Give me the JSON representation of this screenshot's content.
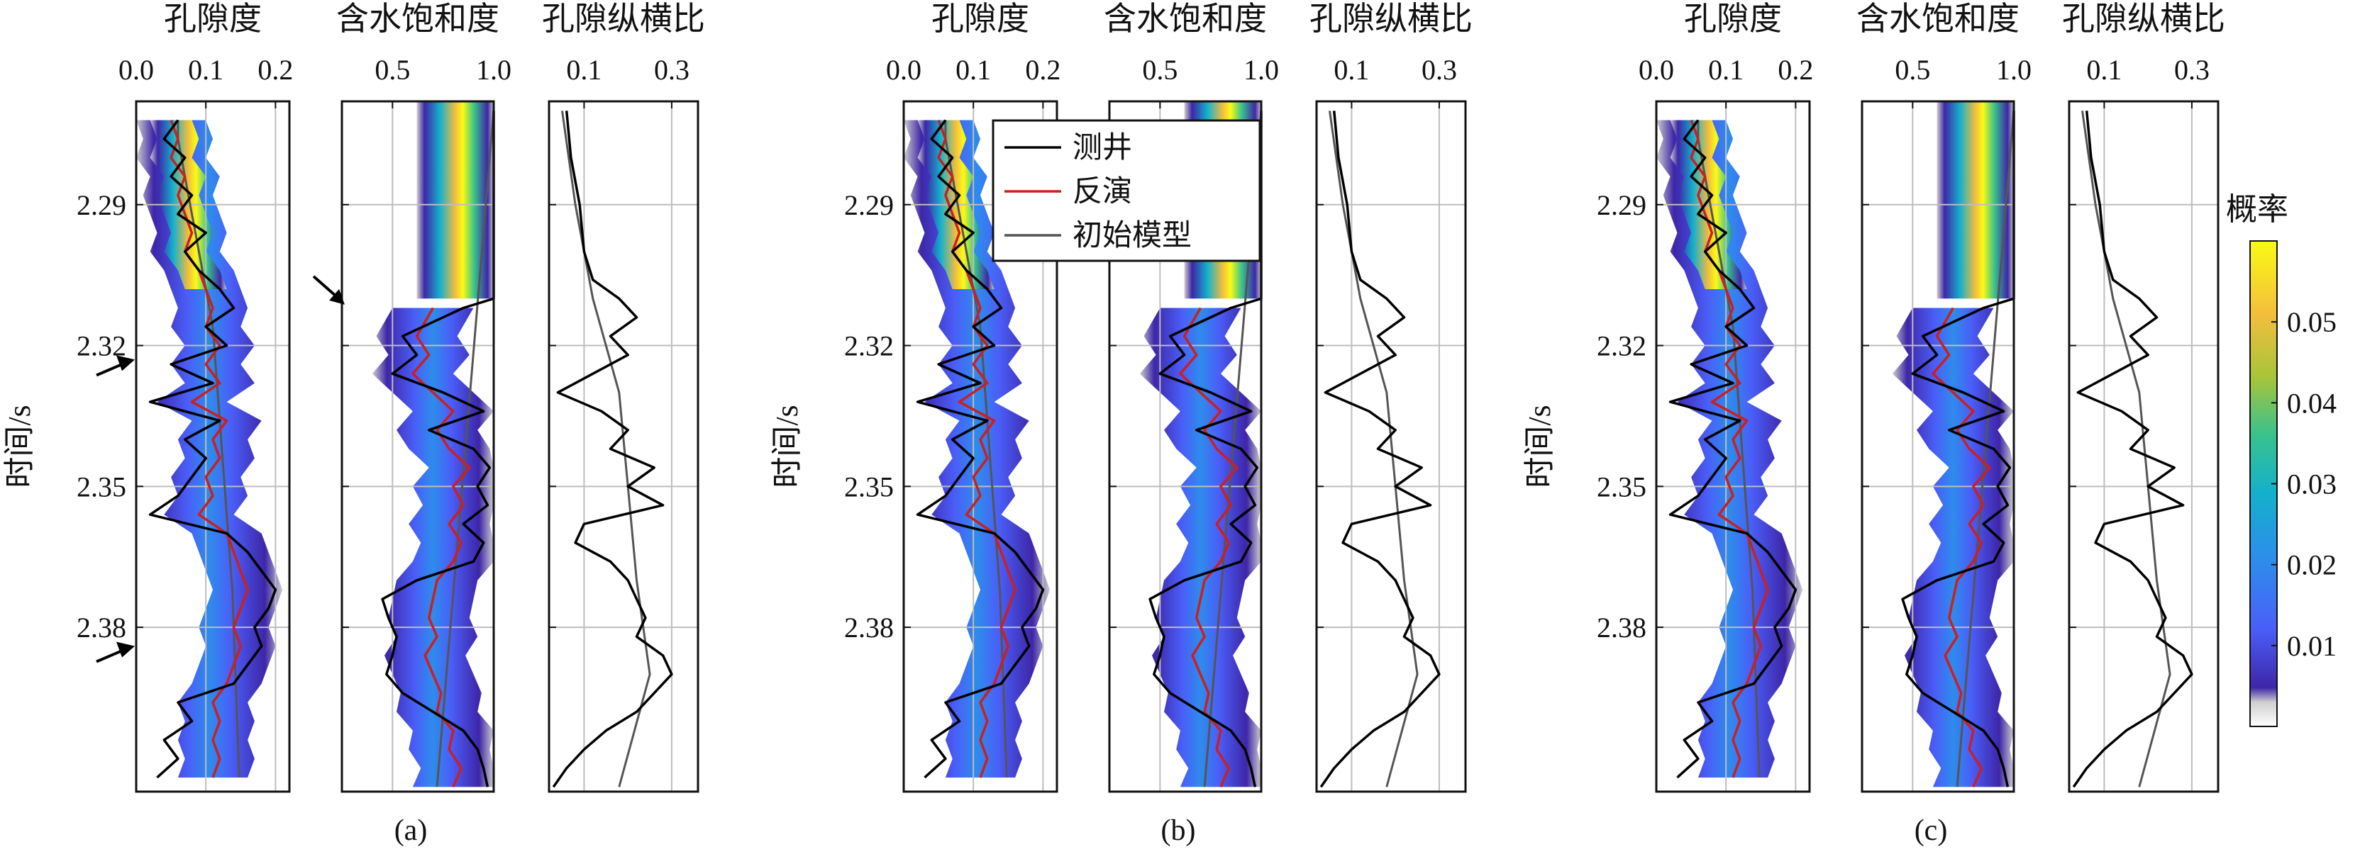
{
  "chart_data": {
    "type": "line",
    "ylabel": "时间/s",
    "ylim": [
      2.268,
      2.415
    ],
    "y_ticks": [
      "2.29",
      "2.32",
      "2.35",
      "2.38"
    ],
    "y_tick_values": [
      2.29,
      2.32,
      2.35,
      2.38
    ],
    "panels": [
      {
        "label": "(a)",
        "shows_arrows": true,
        "shows_legend": false
      },
      {
        "label": "(b)",
        "shows_arrows": false,
        "shows_legend": true
      },
      {
        "label": "(c)",
        "shows_arrows": false,
        "shows_legend": false
      }
    ],
    "tracks": [
      {
        "title": "孔隙度",
        "xlim": [
          0.0,
          0.22
        ],
        "x_ticks": [
          "0.0",
          "0.1",
          "0.2"
        ],
        "x_tick_values": [
          0.0,
          0.1,
          0.2
        ],
        "heatmap": true
      },
      {
        "title": "含水饱和度",
        "xlim": [
          0.25,
          1.0
        ],
        "x_ticks": [
          "0.5",
          "1.0"
        ],
        "x_tick_values": [
          0.5,
          1.0
        ],
        "heatmap": true
      },
      {
        "title": "孔隙纵横比",
        "xlim": [
          0.02,
          0.36
        ],
        "x_ticks": [
          "0.1",
          "0.3"
        ],
        "x_tick_values": [
          0.1,
          0.3
        ],
        "heatmap": false
      }
    ],
    "legend": [
      {
        "name": "测井",
        "color": "#000000"
      },
      {
        "name": "反演",
        "color": "#cc1f1f"
      },
      {
        "name": "初始模型",
        "color": "#555555"
      }
    ],
    "colorbar": {
      "title": "概率",
      "range": [
        0.0,
        0.06
      ],
      "ticks": [
        "0.01",
        "0.02",
        "0.03",
        "0.04",
        "0.05"
      ],
      "tick_values": [
        0.01,
        0.02,
        0.03,
        0.04,
        0.05
      ],
      "colormap": [
        "#3e26a8",
        "#4a5ef8",
        "#2e8cec",
        "#14b0cc",
        "#38c28e",
        "#a8c43a",
        "#f4be3c",
        "#f9fb15"
      ]
    },
    "curves": {
      "porosity": {
        "log_time": [
          2.272,
          2.276,
          2.28,
          2.284,
          2.288,
          2.292,
          2.296,
          2.3,
          2.304,
          2.308,
          2.312,
          2.316,
          2.32,
          2.324,
          2.328,
          2.332,
          2.336,
          2.34,
          2.344,
          2.348,
          2.352,
          2.356,
          2.36,
          2.364,
          2.368,
          2.372,
          2.376,
          2.38,
          2.384,
          2.388,
          2.392,
          2.396,
          2.4,
          2.404,
          2.408,
          2.412
        ],
        "log": [
          0.06,
          0.04,
          0.07,
          0.05,
          0.08,
          0.06,
          0.1,
          0.07,
          0.09,
          0.12,
          0.14,
          0.1,
          0.13,
          0.05,
          0.11,
          0.02,
          0.12,
          0.07,
          0.1,
          0.08,
          0.06,
          0.02,
          0.13,
          0.16,
          0.18,
          0.2,
          0.19,
          0.17,
          0.18,
          0.16,
          0.14,
          0.06,
          0.08,
          0.04,
          0.06,
          0.03
        ],
        "inverted": [
          0.05,
          0.06,
          0.05,
          0.07,
          0.06,
          0.07,
          0.08,
          0.07,
          0.09,
          0.1,
          0.11,
          0.1,
          0.12,
          0.1,
          0.12,
          0.08,
          0.13,
          0.11,
          0.12,
          0.1,
          0.11,
          0.09,
          0.13,
          0.14,
          0.15,
          0.16,
          0.15,
          0.14,
          0.15,
          0.14,
          0.13,
          0.11,
          0.12,
          0.11,
          0.12,
          0.11
        ],
        "initial": [
          0.06,
          0.06,
          0.065,
          0.07,
          0.075,
          0.08,
          0.085,
          0.09,
          0.095,
          0.1,
          0.105,
          0.11,
          0.112,
          0.114,
          0.116,
          0.118,
          0.12,
          0.122,
          0.124,
          0.126,
          0.128,
          0.13,
          0.132,
          0.134,
          0.136,
          0.138,
          0.139,
          0.14,
          0.141,
          0.142,
          0.143,
          0.144,
          0.145,
          0.146,
          0.147,
          0.148
        ]
      },
      "saturation": {
        "log_time": [
          2.27,
          2.3,
          2.31,
          2.312,
          2.318,
          2.322,
          2.326,
          2.33,
          2.334,
          2.338,
          2.342,
          2.346,
          2.35,
          2.354,
          2.358,
          2.362,
          2.366,
          2.37,
          2.374,
          2.378,
          2.382,
          2.386,
          2.39,
          2.394,
          2.398,
          2.402,
          2.406,
          2.41,
          2.414
        ],
        "log": [
          1.0,
          1.0,
          1.0,
          0.85,
          0.55,
          0.62,
          0.5,
          0.75,
          0.95,
          0.68,
          0.9,
          0.98,
          0.92,
          0.97,
          0.85,
          0.95,
          0.9,
          0.62,
          0.45,
          0.48,
          0.52,
          0.5,
          0.47,
          0.55,
          0.7,
          0.85,
          0.92,
          0.95,
          0.97
        ],
        "inverted_time": [
          2.312,
          2.318,
          2.322,
          2.326,
          2.33,
          2.334,
          2.338,
          2.342,
          2.346,
          2.35,
          2.354,
          2.358,
          2.362,
          2.366,
          2.37,
          2.374,
          2.378,
          2.382,
          2.386,
          2.39,
          2.394,
          2.398,
          2.402,
          2.406,
          2.41,
          2.414
        ],
        "inverted": [
          0.7,
          0.62,
          0.68,
          0.6,
          0.7,
          0.8,
          0.72,
          0.78,
          0.88,
          0.8,
          0.85,
          0.78,
          0.84,
          0.8,
          0.72,
          0.7,
          0.68,
          0.72,
          0.66,
          0.7,
          0.74,
          0.72,
          0.8,
          0.78,
          0.84,
          0.8
        ],
        "initial_time": [
          2.27,
          2.414
        ],
        "initial": [
          1.0,
          0.72
        ]
      },
      "aspect_ratio": {
        "log_time": [
          2.27,
          2.28,
          2.29,
          2.3,
          2.306,
          2.31,
          2.314,
          2.318,
          2.322,
          2.326,
          2.33,
          2.334,
          2.338,
          2.342,
          2.346,
          2.35,
          2.354,
          2.358,
          2.362,
          2.366,
          2.37,
          2.374,
          2.378,
          2.382,
          2.386,
          2.39,
          2.394,
          2.398,
          2.402,
          2.406,
          2.41,
          2.414
        ],
        "log": [
          0.06,
          0.07,
          0.09,
          0.1,
          0.12,
          0.18,
          0.22,
          0.16,
          0.2,
          0.12,
          0.04,
          0.14,
          0.2,
          0.16,
          0.26,
          0.2,
          0.28,
          0.1,
          0.08,
          0.16,
          0.2,
          0.22,
          0.24,
          0.22,
          0.28,
          0.3,
          0.26,
          0.22,
          0.15,
          0.1,
          0.06,
          0.03
        ],
        "initial_time": [
          2.27,
          2.29,
          2.31,
          2.33,
          2.35,
          2.37,
          2.39,
          2.414
        ],
        "initial": [
          0.05,
          0.08,
          0.12,
          0.18,
          0.2,
          0.22,
          0.25,
          0.18
        ]
      }
    },
    "annotations": [
      {
        "panel": "(a)",
        "track": "孔隙度",
        "target_time": 2.323,
        "type": "arrow"
      },
      {
        "panel": "(a)",
        "track": "孔隙度",
        "target_time": 2.384,
        "type": "arrow"
      },
      {
        "panel": "(a)",
        "track": "含水饱和度",
        "target_time": 2.311,
        "type": "arrow"
      }
    ]
  }
}
